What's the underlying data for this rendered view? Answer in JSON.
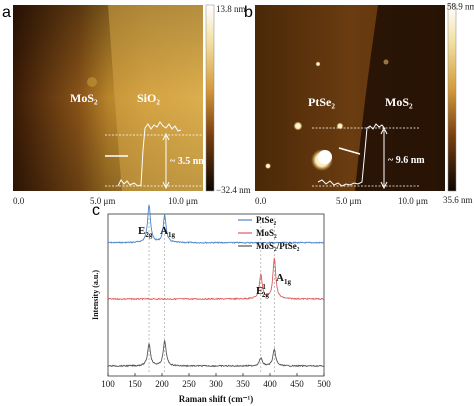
{
  "panel_a": {
    "letter": "a",
    "region_left": "MoS₂",
    "region_right": "SiO₂",
    "height_label": "~ 3.5 nm",
    "scale_max": "13.8 nm",
    "scale_min": "−32.4 nm",
    "x_ticks": [
      "0.0",
      "5.0 μm",
      "10.0 μm"
    ]
  },
  "panel_b": {
    "letter": "b",
    "region_left": "PtSe₂",
    "region_right": "MoS₂",
    "height_label": "~ 9.6 nm",
    "scale_max": "58.9 nm",
    "scale_min": "35.6 nm",
    "x_ticks": [
      "0.0",
      "5.0 μm",
      "10.0 μm"
    ]
  },
  "panel_c": {
    "letter": "c",
    "peak_labels": {
      "e2g_main": "E",
      "e2g_main_sub": "2g",
      "a1g_main": "A",
      "a1g_main_sub": "1g",
      "e2g_mos2": "E",
      "e2g_mos2_sup": "1",
      "e2g_mos2_sub": "2g",
      "a1g_mos2": "A",
      "a1g_mos2_sub": "1g"
    }
  },
  "chart_data": {
    "type": "line",
    "xlabel": "Raman shift (cm⁻¹)",
    "ylabel": "Intensity (a.u.)",
    "xlim": [
      100,
      500
    ],
    "x_ticks": [
      "100",
      "150",
      "200",
      "250",
      "300",
      "350",
      "400",
      "450",
      "500"
    ],
    "legend_position": "top-right",
    "reference_lines": [
      176,
      205,
      383,
      408
    ],
    "series": [
      {
        "name": "PtSe₂",
        "color": "#4a86c8",
        "baseline": 0.92,
        "peaks": [
          {
            "x": 176,
            "height": 0.95
          },
          {
            "x": 205,
            "height": 0.68
          }
        ]
      },
      {
        "name": "MoS₂",
        "color": "#e05a5a",
        "baseline": 0.5,
        "peaks": [
          {
            "x": 383,
            "height": 0.6
          },
          {
            "x": 408,
            "height": 1.0
          }
        ]
      },
      {
        "name": "MoS₂/PtSe₂",
        "color": "#555555",
        "baseline": 0.0,
        "peaks": [
          {
            "x": 176,
            "height": 0.55
          },
          {
            "x": 205,
            "height": 0.62
          },
          {
            "x": 383,
            "height": 0.2
          },
          {
            "x": 408,
            "height": 0.4
          }
        ]
      }
    ]
  }
}
